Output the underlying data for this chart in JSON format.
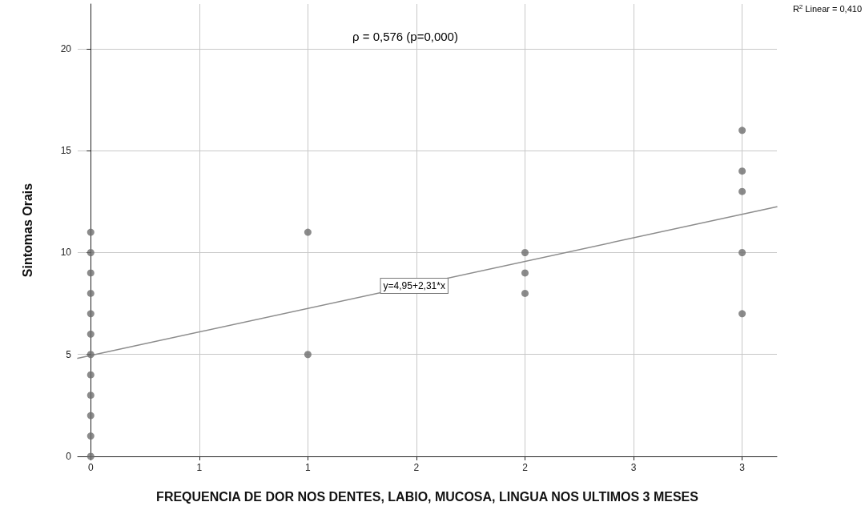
{
  "chart_data": {
    "type": "scatter",
    "xlabel": "FREQUENCIA DE DOR NOS DENTES, LABIO, MUCOSA, LINGUA NOS ULTIMOS 3 MESES",
    "ylabel": "Sintomas Orais",
    "annotations": [
      "ρ = 0,576 (p=0,000)",
      {
        "text": "y=4,95+2,31*x",
        "x": 1.49,
        "y": 8.37
      },
      "R$^{2}$ Linear = 0,410"
    ],
    "series": [
      {
        "color": "#6e6e6e",
        "x": [
          0,
          0,
          0,
          0,
          0,
          0,
          0,
          0,
          0,
          0,
          0,
          0,
          1,
          1,
          2,
          2,
          2,
          3,
          3,
          3,
          3,
          3
        ],
        "values": [
          0,
          1,
          2,
          3,
          4,
          5,
          6,
          7,
          8,
          9,
          10,
          11,
          5,
          11,
          8,
          9,
          10,
          7,
          10,
          13,
          14,
          16
        ]
      },
      {
        "type": "line",
        "marker": "none",
        "color": "#8c8c8c",
        "x": [
          -0.06,
          3.16
        ],
        "values": [
          4.81,
          12.25
        ]
      }
    ],
    "xlim": [
      -0.06,
      3.16
    ],
    "xticks": [
      {
        "value": 0,
        "label": "0"
      },
      {
        "value": 0.5,
        "label": "1"
      },
      {
        "value": 1,
        "label": "1"
      },
      {
        "value": 1.5,
        "label": "2"
      },
      {
        "value": 2,
        "label": "2"
      },
      {
        "value": 2.5,
        "label": "3"
      },
      {
        "value": 3,
        "label": "3"
      }
    ],
    "ylim": [
      0,
      22.2
    ],
    "yticks": [
      0,
      5,
      10,
      15,
      20
    ],
    "grid": true,
    "marker": "circle"
  }
}
